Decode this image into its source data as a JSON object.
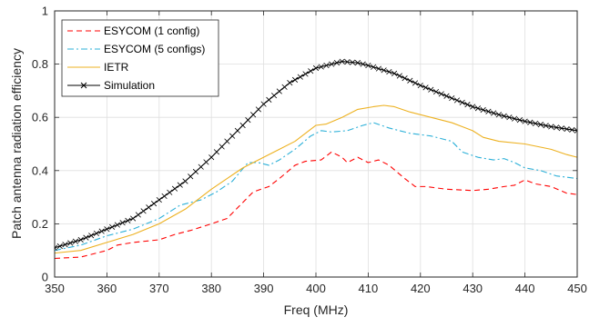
{
  "chart_data": {
    "type": "line",
    "xlabel": "Freq (MHz)",
    "ylabel": "Patch antenna radiation efficiency",
    "xlim": [
      350,
      450
    ],
    "ylim": [
      0,
      1
    ],
    "xticks": [
      350,
      360,
      370,
      380,
      390,
      400,
      410,
      420,
      430,
      440,
      450
    ],
    "yticks": [
      0,
      0.2,
      0.4,
      0.6,
      0.8,
      1
    ],
    "grid": true,
    "legend_position": "top-left",
    "series": [
      {
        "name": "ESYCOM (1 config)",
        "color": "#ff0000",
        "style": "dashed",
        "points": [
          [
            350,
            0.07
          ],
          [
            355,
            0.075
          ],
          [
            360,
            0.1
          ],
          [
            362,
            0.12
          ],
          [
            365,
            0.13
          ],
          [
            370,
            0.14
          ],
          [
            373,
            0.16
          ],
          [
            376,
            0.175
          ],
          [
            380,
            0.2
          ],
          [
            383,
            0.22
          ],
          [
            386,
            0.28
          ],
          [
            388,
            0.32
          ],
          [
            391,
            0.34
          ],
          [
            393,
            0.37
          ],
          [
            396,
            0.42
          ],
          [
            398,
            0.435
          ],
          [
            401,
            0.44
          ],
          [
            403,
            0.47
          ],
          [
            405,
            0.45
          ],
          [
            406,
            0.43
          ],
          [
            408,
            0.45
          ],
          [
            410,
            0.43
          ],
          [
            412,
            0.44
          ],
          [
            414,
            0.42
          ],
          [
            417,
            0.37
          ],
          [
            419,
            0.34
          ],
          [
            421,
            0.34
          ],
          [
            425,
            0.33
          ],
          [
            430,
            0.325
          ],
          [
            433,
            0.33
          ],
          [
            436,
            0.34
          ],
          [
            438,
            0.345
          ],
          [
            440,
            0.365
          ],
          [
            442,
            0.35
          ],
          [
            445,
            0.34
          ],
          [
            448,
            0.315
          ],
          [
            450,
            0.31
          ]
        ]
      },
      {
        "name": "ESYCOM (5 configs)",
        "color": "#2cb0d8",
        "style": "dashdot",
        "points": [
          [
            350,
            0.1
          ],
          [
            355,
            0.12
          ],
          [
            360,
            0.155
          ],
          [
            365,
            0.18
          ],
          [
            370,
            0.22
          ],
          [
            374,
            0.27
          ],
          [
            378,
            0.29
          ],
          [
            381,
            0.32
          ],
          [
            384,
            0.36
          ],
          [
            387,
            0.43
          ],
          [
            389,
            0.43
          ],
          [
            391,
            0.42
          ],
          [
            393,
            0.44
          ],
          [
            396,
            0.48
          ],
          [
            399,
            0.53
          ],
          [
            401,
            0.55
          ],
          [
            403,
            0.545
          ],
          [
            406,
            0.55
          ],
          [
            409,
            0.57
          ],
          [
            411,
            0.58
          ],
          [
            414,
            0.56
          ],
          [
            418,
            0.54
          ],
          [
            422,
            0.53
          ],
          [
            426,
            0.51
          ],
          [
            428,
            0.47
          ],
          [
            431,
            0.45
          ],
          [
            434,
            0.44
          ],
          [
            436,
            0.445
          ],
          [
            438,
            0.43
          ],
          [
            440,
            0.41
          ],
          [
            443,
            0.4
          ],
          [
            446,
            0.38
          ],
          [
            450,
            0.37
          ]
        ]
      },
      {
        "name": "IETR",
        "color": "#edb120",
        "style": "solid",
        "points": [
          [
            350,
            0.09
          ],
          [
            355,
            0.1
          ],
          [
            360,
            0.13
          ],
          [
            365,
            0.16
          ],
          [
            370,
            0.2
          ],
          [
            375,
            0.255
          ],
          [
            380,
            0.33
          ],
          [
            383,
            0.37
          ],
          [
            386,
            0.41
          ],
          [
            390,
            0.45
          ],
          [
            393,
            0.48
          ],
          [
            396,
            0.51
          ],
          [
            400,
            0.57
          ],
          [
            402,
            0.575
          ],
          [
            405,
            0.6
          ],
          [
            408,
            0.63
          ],
          [
            411,
            0.64
          ],
          [
            413,
            0.645
          ],
          [
            415,
            0.64
          ],
          [
            418,
            0.62
          ],
          [
            422,
            0.6
          ],
          [
            426,
            0.58
          ],
          [
            430,
            0.55
          ],
          [
            432,
            0.525
          ],
          [
            435,
            0.51
          ],
          [
            440,
            0.5
          ],
          [
            445,
            0.48
          ],
          [
            448,
            0.46
          ],
          [
            450,
            0.45
          ]
        ]
      },
      {
        "name": "Simulation",
        "color": "#000000",
        "style": "solid-xmarker",
        "points": [
          [
            350,
            0.11
          ],
          [
            355,
            0.14
          ],
          [
            360,
            0.18
          ],
          [
            365,
            0.22
          ],
          [
            370,
            0.29
          ],
          [
            375,
            0.36
          ],
          [
            380,
            0.45
          ],
          [
            385,
            0.55
          ],
          [
            390,
            0.65
          ],
          [
            395,
            0.73
          ],
          [
            400,
            0.785
          ],
          [
            403,
            0.8
          ],
          [
            405,
            0.81
          ],
          [
            408,
            0.805
          ],
          [
            410,
            0.795
          ],
          [
            415,
            0.765
          ],
          [
            420,
            0.72
          ],
          [
            425,
            0.68
          ],
          [
            430,
            0.64
          ],
          [
            435,
            0.61
          ],
          [
            440,
            0.585
          ],
          [
            445,
            0.565
          ],
          [
            450,
            0.55
          ]
        ]
      }
    ]
  }
}
